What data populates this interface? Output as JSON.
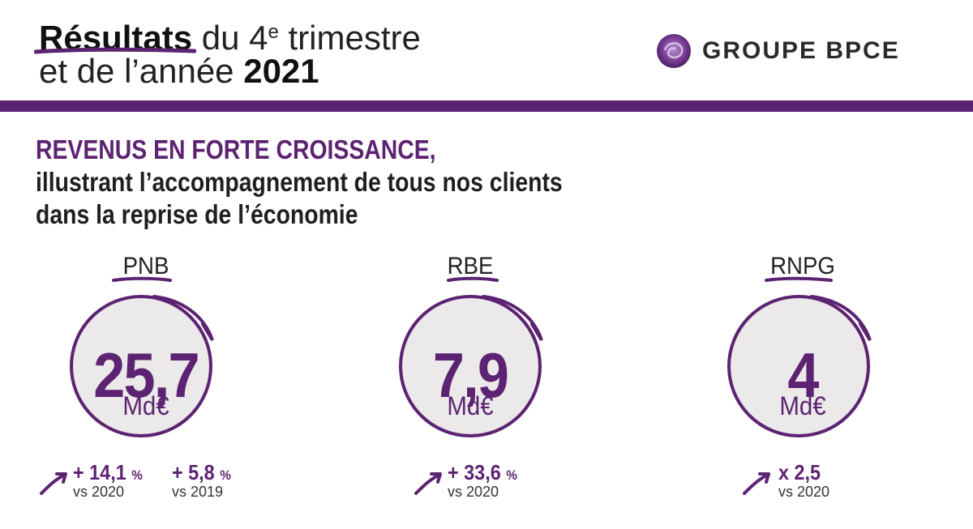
{
  "header": {
    "title_bold": "Résultats",
    "title_rest_1": " du 4",
    "title_sup": "e",
    "title_rest_2": " trimestre",
    "title_line2_prefix": "et de l’année ",
    "title_year": "2021",
    "brand": "GROUPE BPCE"
  },
  "headline": {
    "line1": "REVENUS EN FORTE CROISSANCE,",
    "line2": "illustrant l’accompagnement de tous nos clients",
    "line3": "dans la reprise de l’économie"
  },
  "kpis": [
    {
      "label": "PNB",
      "value": "25,7",
      "unit": "Md€",
      "growth": [
        {
          "value": "+ 14,1",
          "unit": "%",
          "vs": "vs 2020"
        },
        {
          "value": "+ 5,8",
          "unit": "%",
          "vs": "vs 2019"
        }
      ]
    },
    {
      "label": "RBE",
      "value": "7,9",
      "unit": "Md€",
      "growth": [
        {
          "value": "+ 33,6",
          "unit": "%",
          "vs": "vs 2020"
        }
      ]
    },
    {
      "label": "RNPG",
      "value": "4",
      "unit": "Md€",
      "growth": [
        {
          "value": "x 2,5",
          "unit": "",
          "vs": "vs 2020"
        }
      ]
    }
  ],
  "colors": {
    "accent": "#5c2372",
    "circle_fill": "#ebe9e9",
    "text_dark": "#1f1f1f"
  }
}
